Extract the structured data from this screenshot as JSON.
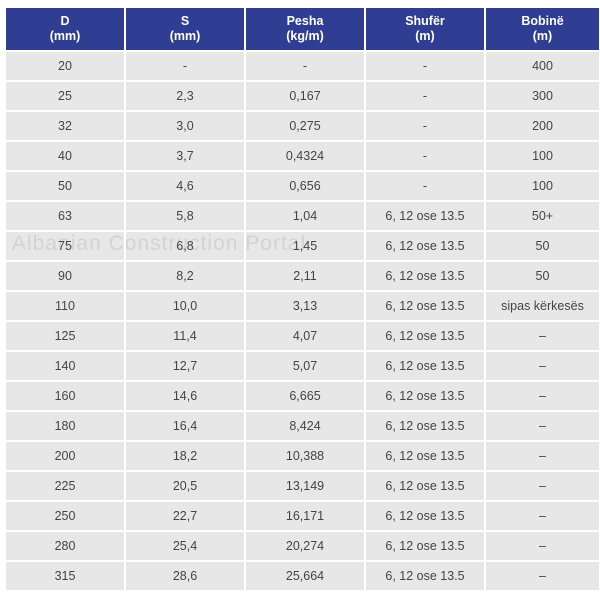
{
  "header": [
    {
      "name": "D",
      "unit": "(mm)"
    },
    {
      "name": "S",
      "unit": "(mm)"
    },
    {
      "name": "Pesha",
      "unit": "(kg/m)"
    },
    {
      "name": "Shufër",
      "unit": "(m)"
    },
    {
      "name": "Bobinë",
      "unit": "(m)"
    }
  ],
  "rows": [
    [
      "20",
      "-",
      "-",
      "-",
      "400"
    ],
    [
      "25",
      "2,3",
      "0,167",
      "-",
      "300"
    ],
    [
      "32",
      "3,0",
      "0,275",
      "-",
      "200"
    ],
    [
      "40",
      "3,7",
      "0,4324",
      "-",
      "100"
    ],
    [
      "50",
      "4,6",
      "0,656",
      "-",
      "100"
    ],
    [
      "63",
      "5,8",
      "1,04",
      "6, 12 ose 13.5",
      "50+"
    ],
    [
      "75",
      "6,8",
      "1,45",
      "6, 12 ose 13.5",
      "50"
    ],
    [
      "90",
      "8,2",
      "2,11",
      "6, 12 ose 13.5",
      "50"
    ],
    [
      "110",
      "10,0",
      "3,13",
      "6, 12 ose 13.5",
      "sipas kërkesës"
    ],
    [
      "125",
      "11,4",
      "4,07",
      "6, 12 ose 13.5",
      "–"
    ],
    [
      "140",
      "12,7",
      "5,07",
      "6, 12 ose 13.5",
      "–"
    ],
    [
      "160",
      "14,6",
      "6,665",
      "6, 12 ose 13.5",
      "–"
    ],
    [
      "180",
      "16,4",
      "8,424",
      "6, 12 ose 13.5",
      "–"
    ],
    [
      "200",
      "18,2",
      "10,388",
      "6, 12 ose 13.5",
      "–"
    ],
    [
      "225",
      "20,5",
      "13,149",
      "6, 12 ose 13.5",
      "–"
    ],
    [
      "250",
      "22,7",
      "16,171",
      "6, 12 ose 13.5",
      "–"
    ],
    [
      "280",
      "25,4",
      "20,274",
      "6, 12 ose 13.5",
      "–"
    ],
    [
      "315",
      "28,6",
      "25,664",
      "6, 12 ose 13.5",
      "–"
    ]
  ],
  "watermark": "Albanian Construction Portal"
}
